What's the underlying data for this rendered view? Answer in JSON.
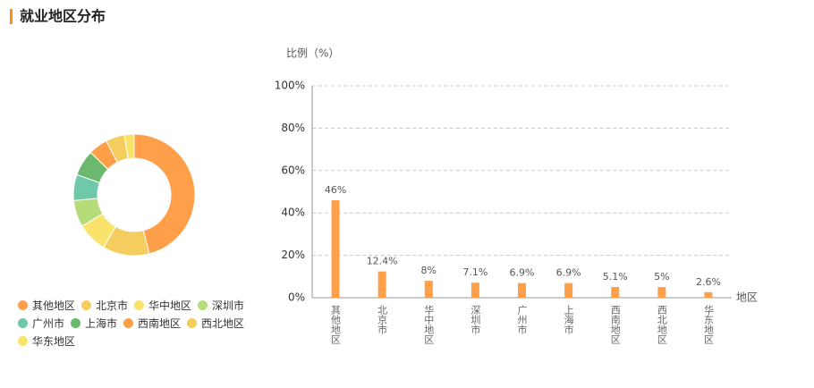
{
  "title": "就业地区分布",
  "chart_data": [
    {
      "type": "pie",
      "categories": [
        "其他地区",
        "北京市",
        "华中地区",
        "深圳市",
        "广州市",
        "上海市",
        "西南地区",
        "西北地区",
        "华东地区"
      ],
      "values": [
        46,
        12.4,
        8,
        7.1,
        6.9,
        6.9,
        5.1,
        5,
        2.6
      ],
      "colors": [
        "#ff9f4a",
        "#f5cd5e",
        "#f9e36b",
        "#b5dc78",
        "#6fc9a8",
        "#6ab96e",
        "#ff9f4a",
        "#f5cd5e",
        "#f9e36b"
      ]
    },
    {
      "type": "bar",
      "y_label": "比例（%）",
      "x_label": "地区",
      "categories": [
        "其他地区",
        "北京市",
        "华中地区",
        "深圳市",
        "广州市",
        "上海市",
        "西南地区",
        "西北地区",
        "华东地区"
      ],
      "values": [
        46,
        12.4,
        8,
        7.1,
        6.9,
        6.9,
        5.1,
        5,
        2.6
      ],
      "value_labels": [
        "46%",
        "12.4%",
        "8%",
        "7.1%",
        "6.9%",
        "6.9%",
        "5.1%",
        "5%",
        "2.6%"
      ],
      "color": "#ff9f4a",
      "ylim": [
        0,
        100
      ],
      "yticks": [
        {
          "value": 0,
          "label": "0%"
        },
        {
          "value": 20,
          "label": "20%"
        },
        {
          "value": 40,
          "label": "40%"
        },
        {
          "value": 60,
          "label": "60%"
        },
        {
          "value": 80,
          "label": "80%"
        },
        {
          "value": 100,
          "label": "100%"
        }
      ],
      "grid": true
    }
  ]
}
